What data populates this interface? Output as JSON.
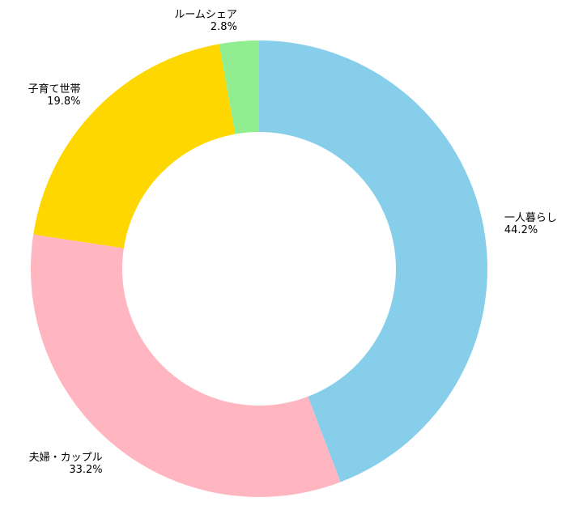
{
  "chart_data": {
    "type": "pie",
    "variant": "donut",
    "title": "",
    "start_angle_deg": 90,
    "direction": "clockwise",
    "legend": "none",
    "slices": [
      {
        "label": "一人暮らし",
        "value": 44.2,
        "value_label": "44.2%",
        "color": "#87CEEB"
      },
      {
        "label": "夫婦・カップル",
        "value": 33.2,
        "value_label": "33.2%",
        "color": "#FFB6C1"
      },
      {
        "label": "子育て世帯",
        "value": 19.8,
        "value_label": "19.8%",
        "color": "#FFD700"
      },
      {
        "label": "ルームシェア",
        "value": 2.8,
        "value_label": "2.8%",
        "color": "#90EE90"
      }
    ]
  }
}
